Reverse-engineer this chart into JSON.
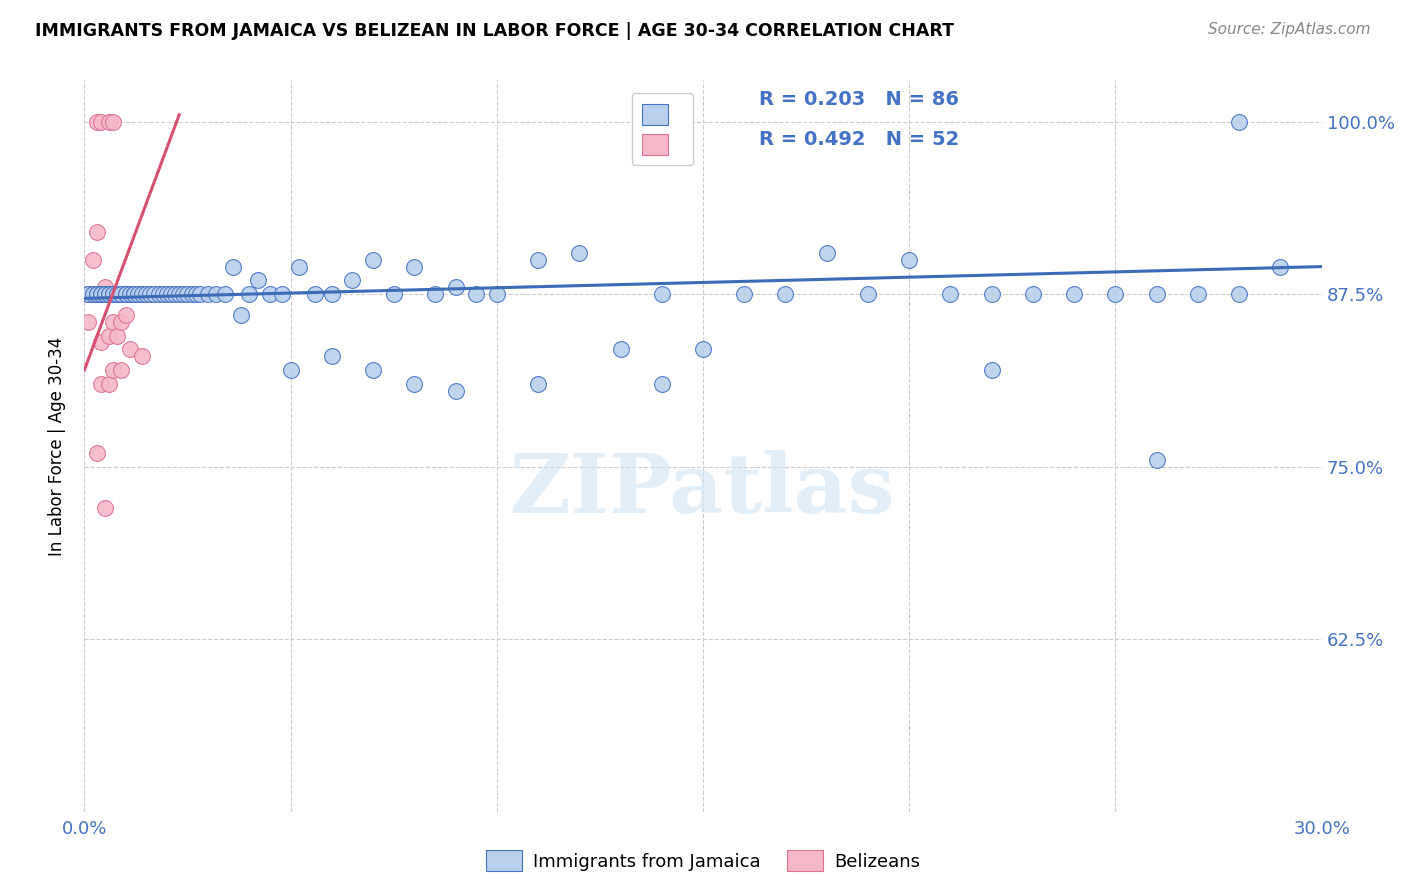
{
  "title": "IMMIGRANTS FROM JAMAICA VS BELIZEAN IN LABOR FORCE | AGE 30-34 CORRELATION CHART",
  "source": "Source: ZipAtlas.com",
  "ylabel": "In Labor Force | Age 30-34",
  "yticks": [
    "62.5%",
    "75.0%",
    "87.5%",
    "100.0%"
  ],
  "ytick_vals": [
    0.625,
    0.75,
    0.875,
    1.0
  ],
  "xlim": [
    0.0,
    0.3
  ],
  "ylim": [
    0.5,
    1.03
  ],
  "legend_r_jamaica": "R = 0.203",
  "legend_n_jamaica": "N = 86",
  "legend_r_belize": "R = 0.492",
  "legend_n_belize": "N = 52",
  "color_jamaica_fill": "#b8d0ec",
  "color_jamaica_edge": "#4472c4",
  "color_belize_fill": "#f4b8c8",
  "color_belize_edge": "#e07090",
  "color_line_jamaica": "#3a6cb8",
  "color_line_belize": "#d85070",
  "color_text_blue": "#4472c4",
  "watermark": "ZIPatlas",
  "jamaica_x": [
    0.001,
    0.002,
    0.003,
    0.003,
    0.004,
    0.004,
    0.005,
    0.005,
    0.006,
    0.006,
    0.007,
    0.007,
    0.008,
    0.008,
    0.009,
    0.009,
    0.01,
    0.01,
    0.011,
    0.012,
    0.012,
    0.013,
    0.014,
    0.015,
    0.016,
    0.017,
    0.018,
    0.019,
    0.02,
    0.021,
    0.022,
    0.023,
    0.024,
    0.025,
    0.026,
    0.027,
    0.028,
    0.03,
    0.032,
    0.034,
    0.036,
    0.038,
    0.04,
    0.042,
    0.045,
    0.048,
    0.052,
    0.056,
    0.06,
    0.065,
    0.07,
    0.075,
    0.08,
    0.085,
    0.09,
    0.095,
    0.1,
    0.11,
    0.12,
    0.13,
    0.14,
    0.15,
    0.16,
    0.17,
    0.18,
    0.19,
    0.2,
    0.21,
    0.22,
    0.23,
    0.24,
    0.25,
    0.26,
    0.27,
    0.28,
    0.29,
    0.05,
    0.06,
    0.07,
    0.08,
    0.09,
    0.11,
    0.14,
    0.22,
    0.26,
    0.28
  ],
  "jamaica_y": [
    0.875,
    0.875,
    0.875,
    0.875,
    0.875,
    0.875,
    0.875,
    0.875,
    0.875,
    0.875,
    0.875,
    0.875,
    0.875,
    0.875,
    0.875,
    0.875,
    0.875,
    0.875,
    0.875,
    0.875,
    0.875,
    0.875,
    0.875,
    0.875,
    0.875,
    0.875,
    0.875,
    0.875,
    0.875,
    0.875,
    0.875,
    0.875,
    0.875,
    0.875,
    0.875,
    0.875,
    0.875,
    0.875,
    0.875,
    0.875,
    0.895,
    0.86,
    0.875,
    0.885,
    0.875,
    0.875,
    0.895,
    0.875,
    0.875,
    0.885,
    0.9,
    0.875,
    0.895,
    0.875,
    0.88,
    0.875,
    0.875,
    0.9,
    0.905,
    0.835,
    0.875,
    0.835,
    0.875,
    0.875,
    0.905,
    0.875,
    0.9,
    0.875,
    0.875,
    0.875,
    0.875,
    0.875,
    0.875,
    0.875,
    0.875,
    0.895,
    0.82,
    0.83,
    0.82,
    0.81,
    0.805,
    0.81,
    0.81,
    0.82,
    0.755,
    1.0
  ],
  "belize_x": [
    0.001,
    0.001,
    0.002,
    0.002,
    0.003,
    0.003,
    0.003,
    0.004,
    0.004,
    0.004,
    0.005,
    0.005,
    0.005,
    0.005,
    0.006,
    0.006,
    0.006,
    0.007,
    0.007,
    0.007,
    0.008,
    0.008,
    0.009,
    0.009,
    0.01,
    0.01,
    0.01,
    0.011,
    0.012,
    0.013,
    0.013,
    0.014,
    0.015,
    0.016,
    0.001,
    0.002,
    0.003,
    0.004,
    0.005,
    0.006,
    0.007,
    0.008,
    0.009,
    0.01,
    0.004,
    0.006,
    0.007,
    0.009,
    0.011,
    0.014,
    0.005,
    0.003
  ],
  "belize_y": [
    0.875,
    0.875,
    0.875,
    0.875,
    0.875,
    0.875,
    1.0,
    0.875,
    0.875,
    1.0,
    0.875,
    0.875,
    0.875,
    0.875,
    0.875,
    0.875,
    1.0,
    0.875,
    0.875,
    1.0,
    0.875,
    0.875,
    0.875,
    0.875,
    0.875,
    0.875,
    0.875,
    0.875,
    0.875,
    0.875,
    0.875,
    0.875,
    0.875,
    0.875,
    0.855,
    0.9,
    0.92,
    0.84,
    0.88,
    0.845,
    0.855,
    0.845,
    0.855,
    0.86,
    0.81,
    0.81,
    0.82,
    0.82,
    0.835,
    0.83,
    0.72,
    0.76
  ]
}
